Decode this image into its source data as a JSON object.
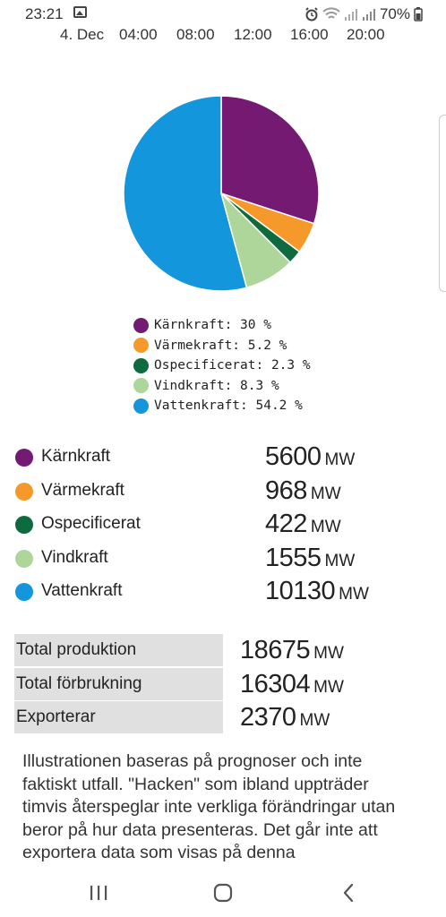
{
  "status_bar": {
    "time": "23:21",
    "battery": "70%",
    "icons": [
      "image-icon",
      "alarm-icon",
      "wifi-icon",
      "signal-icon",
      "signal-icon",
      "battery-icon"
    ]
  },
  "time_axis": [
    "4. Dec",
    "04:00",
    "08:00",
    "12:00",
    "16:00",
    "20:00"
  ],
  "chart_data": {
    "type": "pie",
    "categories": [
      "Kärnkraft",
      "Värmekraft",
      "Ospecificerat",
      "Vindkraft",
      "Vattenkraft"
    ],
    "values": [
      30,
      5.2,
      2.3,
      8.3,
      54.2
    ],
    "colors": [
      "#741a72",
      "#f59a2a",
      "#0d6b3f",
      "#aed69b",
      "#1396dc"
    ],
    "legend": [
      "Kärnkraft: 30 %",
      "Värmekraft: 5.2 %",
      "Ospecificerat: 2.3 %",
      "Vindkraft: 8.3 %",
      "Vattenkraft: 54.2 %"
    ]
  },
  "sources": [
    {
      "name": "Kärnkraft",
      "value": "5600",
      "unit": "MW",
      "color": "#741a72"
    },
    {
      "name": "Värmekraft",
      "value": "968",
      "unit": "MW",
      "color": "#f59a2a"
    },
    {
      "name": "Ospecificerat",
      "value": "422",
      "unit": "MW",
      "color": "#0d6b3f"
    },
    {
      "name": "Vindkraft",
      "value": "1555",
      "unit": "MW",
      "color": "#aed69b"
    },
    {
      "name": "Vattenkraft",
      "value": "10130",
      "unit": "MW",
      "color": "#1396dc"
    }
  ],
  "totals": [
    {
      "label": "Total produktion",
      "value": "18675",
      "unit": "MW"
    },
    {
      "label": "Total förbrukning",
      "value": "16304",
      "unit": "MW"
    },
    {
      "label": "Exporterar",
      "value": "2370",
      "unit": "MW"
    }
  ],
  "description": "Illustrationen baseras på prognoser och inte faktiskt utfall. \"Hacken\" som ibland uppträder timvis återspeglar inte verkliga förändringar utan beror på hur data presenteras. Det går inte att exportera data som visas på denna",
  "navbar": {
    "icons": [
      "recent-apps-icon",
      "home-icon",
      "back-icon"
    ]
  }
}
